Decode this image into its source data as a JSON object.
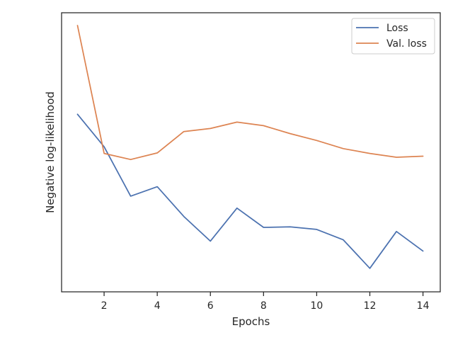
{
  "chart_data": {
    "type": "line",
    "title": "",
    "xlabel": "Epochs",
    "ylabel": "Negative log-likelihood",
    "x": [
      1,
      2,
      3,
      4,
      5,
      6,
      7,
      8,
      9,
      10,
      11,
      12,
      13,
      14
    ],
    "xticks": [
      "2",
      "4",
      "6",
      "8",
      "10",
      "12",
      "14"
    ],
    "xlim": [
      0.4,
      14.65
    ],
    "ylim": [
      0.0,
      1.0
    ],
    "y_tick_labels_shown": false,
    "grid": false,
    "legend": "top-right",
    "series": [
      {
        "name": "Loss",
        "color": "#4c72b0",
        "values": [
          0.651,
          0.523,
          0.329,
          0.366,
          0.249,
          0.152,
          0.282,
          0.206,
          0.208,
          0.198,
          0.157,
          0.045,
          0.19,
          0.113
        ]
      },
      {
        "name": "Val. loss",
        "color": "#dd8452",
        "values": [
          1.0,
          0.497,
          0.473,
          0.499,
          0.583,
          0.595,
          0.62,
          0.606,
          0.575,
          0.548,
          0.516,
          0.497,
          0.482,
          0.486
        ]
      }
    ]
  }
}
